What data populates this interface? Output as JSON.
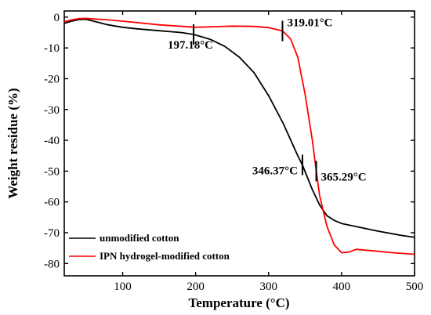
{
  "chart_data": {
    "type": "line",
    "xlabel": "Temperature (°C)",
    "ylabel": "Weight residue (%)",
    "xlim": [
      20,
      500
    ],
    "ylim": [
      -84,
      2
    ],
    "xticks": [
      100,
      200,
      300,
      400,
      500
    ],
    "yticks": [
      0,
      -10,
      -20,
      -30,
      -40,
      -50,
      -60,
      -70,
      -80
    ],
    "grid": false,
    "legend_position": "bottom-left",
    "series": [
      {
        "name": "unmodified cotton",
        "color": "#000000",
        "x": [
          20,
          30,
          40,
          50,
          60,
          80,
          100,
          120,
          150,
          180,
          197.18,
          220,
          240,
          260,
          280,
          300,
          320,
          340,
          346.37,
          360,
          370,
          380,
          390,
          400,
          420,
          450,
          480,
          500
        ],
        "y": [
          -2,
          -1.3,
          -0.8,
          -0.7,
          -1.3,
          -2.5,
          -3.3,
          -3.8,
          -4.4,
          -5,
          -5.6,
          -7.2,
          -9.5,
          -13,
          -18,
          -25.5,
          -34.5,
          -45,
          -48,
          -56,
          -61,
          -64.5,
          -66,
          -67,
          -68,
          -69.5,
          -70.8,
          -71.5
        ]
      },
      {
        "name": "IPN hydrogel-modified cotton",
        "color": "#ff0000",
        "x": [
          20,
          30,
          40,
          50,
          60,
          80,
          100,
          150,
          200,
          230,
          250,
          280,
          300,
          319.01,
          330,
          340,
          350,
          360,
          365.29,
          370,
          380,
          390,
          400,
          410,
          420,
          440,
          470,
          500
        ],
        "y": [
          -1.5,
          -0.9,
          -0.5,
          -0.4,
          -0.6,
          -0.9,
          -1.3,
          -2.5,
          -3.3,
          -3.1,
          -2.9,
          -3,
          -3.4,
          -4.5,
          -7,
          -13,
          -25,
          -40,
          -50,
          -58,
          -68,
          -74,
          -76.5,
          -76.3,
          -75.4,
          -75.8,
          -76.5,
          -77
        ]
      }
    ],
    "annotations": [
      {
        "label": "197.18°C",
        "series": 0,
        "x": 197.18
      },
      {
        "label": "319.01°C",
        "series": 1,
        "x": 319.01
      },
      {
        "label": "346.37°C",
        "series": 0,
        "x": 346.37
      },
      {
        "label": "365.29°C",
        "series": 1,
        "x": 365.29
      }
    ]
  }
}
